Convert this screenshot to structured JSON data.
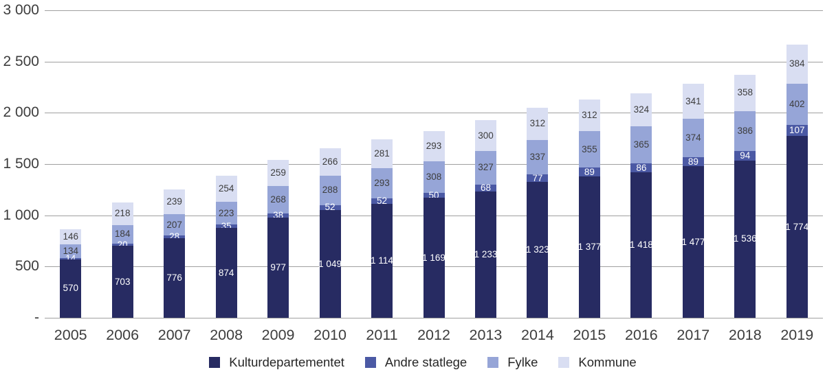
{
  "chart_data": {
    "type": "bar",
    "stacked": true,
    "title": "",
    "xlabel": "",
    "ylabel": "",
    "ylim": [
      0,
      3000
    ],
    "grid": "horizontal",
    "legend_position": "bottom",
    "categories": [
      "2005",
      "2006",
      "2007",
      "2008",
      "2009",
      "2010",
      "2011",
      "2012",
      "2013",
      "2014",
      "2015",
      "2016",
      "2017",
      "2018",
      "2019"
    ],
    "series": [
      {
        "name": "Kulturdepartementet",
        "color": "#272b62",
        "label_color": "#ffffff",
        "values": [
          570,
          703,
          776,
          874,
          977,
          1049,
          1114,
          1169,
          1233,
          1323,
          1377,
          1418,
          1477,
          1536,
          1774
        ]
      },
      {
        "name": "Andre statlege",
        "color": "#4b59a4",
        "label_color": "#ffffff",
        "values": [
          14,
          20,
          28,
          35,
          38,
          52,
          52,
          50,
          68,
          77,
          89,
          86,
          89,
          94,
          107
        ]
      },
      {
        "name": "Fylke",
        "color": "#96a5d7",
        "label_color": "#3d3d3d",
        "values": [
          134,
          184,
          207,
          223,
          268,
          288,
          293,
          308,
          327,
          337,
          355,
          365,
          374,
          386,
          402
        ]
      },
      {
        "name": "Kommune",
        "color": "#d9def2",
        "label_color": "#3d3d3d",
        "values": [
          146,
          218,
          239,
          254,
          259,
          266,
          281,
          293,
          300,
          312,
          312,
          324,
          341,
          358,
          384
        ]
      }
    ],
    "y_ticks": [
      {
        "value": 3000,
        "label": "3 000"
      },
      {
        "value": 2500,
        "label": "2 500"
      },
      {
        "value": 2000,
        "label": "2 000"
      },
      {
        "value": 1500,
        "label": "1 500"
      },
      {
        "value": 1000,
        "label": "1 000"
      },
      {
        "value": 500,
        "label": "500"
      },
      {
        "value": 0,
        "label": "-"
      }
    ]
  }
}
